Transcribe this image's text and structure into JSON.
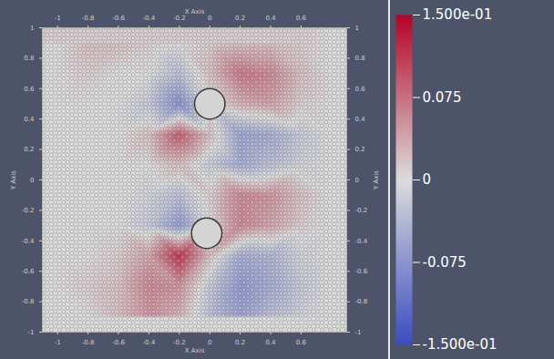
{
  "chart_data": {
    "type": "heatmap",
    "xlabel": "X Axis",
    "ylabel": "Y Axis",
    "xlim": [
      -1.1,
      0.9
    ],
    "ylim": [
      -1,
      1
    ],
    "xticks": [
      -1,
      -0.8,
      -0.6,
      -0.4,
      -0.2,
      0,
      0.2,
      0.4,
      0.6
    ],
    "yticks": [
      -1,
      -0.8,
      -0.6,
      -0.4,
      -0.2,
      0,
      0.2,
      0.4,
      0.6,
      0.8,
      1
    ],
    "cells": {
      "x": [
        -1.0,
        -0.8,
        -0.6,
        -0.4,
        -0.2,
        0,
        0.2,
        0.4,
        0.6,
        0.8
      ],
      "y": [
        0.9,
        0.7,
        0.5,
        0.3,
        0.1,
        -0.1,
        -0.3,
        -0.5,
        -0.7,
        -0.9
      ],
      "values": [
        [
          0,
          0.02,
          0.02,
          0.01,
          0,
          0.01,
          0.02,
          0.02,
          0.01,
          0
        ],
        [
          0,
          0.01,
          0,
          0,
          -0.03,
          0.02,
          0.07,
          0.06,
          0.02,
          0
        ],
        [
          0,
          0,
          0,
          -0.02,
          -0.08,
          0,
          0.03,
          0.04,
          0.01,
          0
        ],
        [
          0,
          0,
          0,
          0.02,
          0.09,
          0.02,
          -0.06,
          -0.05,
          -0.02,
          0
        ],
        [
          0,
          0,
          0,
          0,
          0.02,
          -0.02,
          -0.05,
          -0.03,
          -0.01,
          0
        ],
        [
          0,
          0,
          0,
          -0.01,
          -0.03,
          0.01,
          0.06,
          0.05,
          0.02,
          0
        ],
        [
          0,
          0,
          0,
          -0.02,
          -0.07,
          0,
          0.06,
          0.04,
          0.01,
          0
        ],
        [
          0,
          0,
          0.01,
          0.04,
          0.12,
          0.02,
          -0.05,
          -0.04,
          -0.01,
          0
        ],
        [
          0,
          0.01,
          0.02,
          0.06,
          0.05,
          -0.02,
          -0.07,
          -0.05,
          -0.02,
          0
        ],
        [
          0,
          0,
          0.02,
          0.05,
          0.03,
          -0.03,
          -0.06,
          -0.03,
          -0.01,
          0
        ]
      ]
    },
    "obstacles": [
      {
        "x": 0,
        "y": 0.5,
        "r": 0.1
      },
      {
        "x": -0.02,
        "y": -0.35,
        "r": 0.1
      }
    ],
    "colorbar_lim": [
      -0.15,
      0.15
    ],
    "colorbar_ticks": [
      {
        "value": 0.15,
        "label": "1.500e-01"
      },
      0.075,
      0,
      -0.075,
      {
        "value": -0.15,
        "label": "-1.500e-01"
      }
    ]
  }
}
